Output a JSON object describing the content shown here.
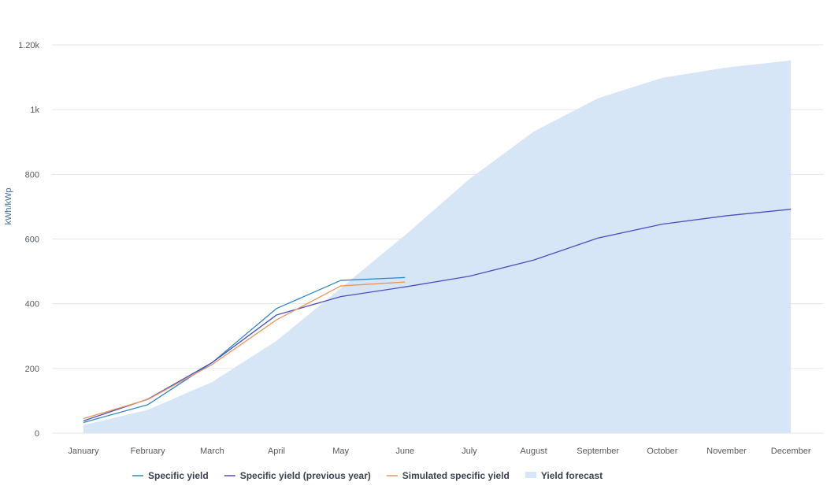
{
  "chart_data": {
    "type": "line",
    "xlabel": "",
    "ylabel": "kWh/kWp",
    "categories": [
      "January",
      "February",
      "March",
      "April",
      "May",
      "June",
      "July",
      "August",
      "September",
      "October",
      "November",
      "December"
    ],
    "ylim": [
      0,
      1200
    ],
    "y_ticks": [
      {
        "value": 0,
        "label": "0"
      },
      {
        "value": 200,
        "label": "200"
      },
      {
        "value": 400,
        "label": "400"
      },
      {
        "value": 600,
        "label": "600"
      },
      {
        "value": 800,
        "label": "800"
      },
      {
        "value": 1000,
        "label": "1k"
      },
      {
        "value": 1200,
        "label": "1.20k"
      }
    ],
    "grid": true,
    "legend_position": "bottom",
    "series": [
      {
        "name": "Specific yield",
        "type": "line",
        "color": "#2e86c9",
        "values": [
          33,
          88,
          218,
          385,
          472,
          481,
          null,
          null,
          null,
          null,
          null,
          null
        ]
      },
      {
        "name": "Specific yield (previous year)",
        "type": "line",
        "color": "#4a4fbf",
        "values": [
          38,
          105,
          218,
          365,
          422,
          452,
          485,
          535,
          603,
          646,
          672,
          692
        ]
      },
      {
        "name": "Simulated specific yield",
        "type": "line",
        "color": "#e8965a",
        "values": [
          45,
          104,
          212,
          350,
          455,
          467,
          null,
          null,
          null,
          null,
          null,
          null
        ]
      },
      {
        "name": "Yield forecast",
        "type": "area",
        "color": "#d6e6f7",
        "values": [
          25,
          72,
          158,
          285,
          448,
          612,
          785,
          932,
          1035,
          1098,
          1130,
          1152
        ]
      }
    ]
  }
}
